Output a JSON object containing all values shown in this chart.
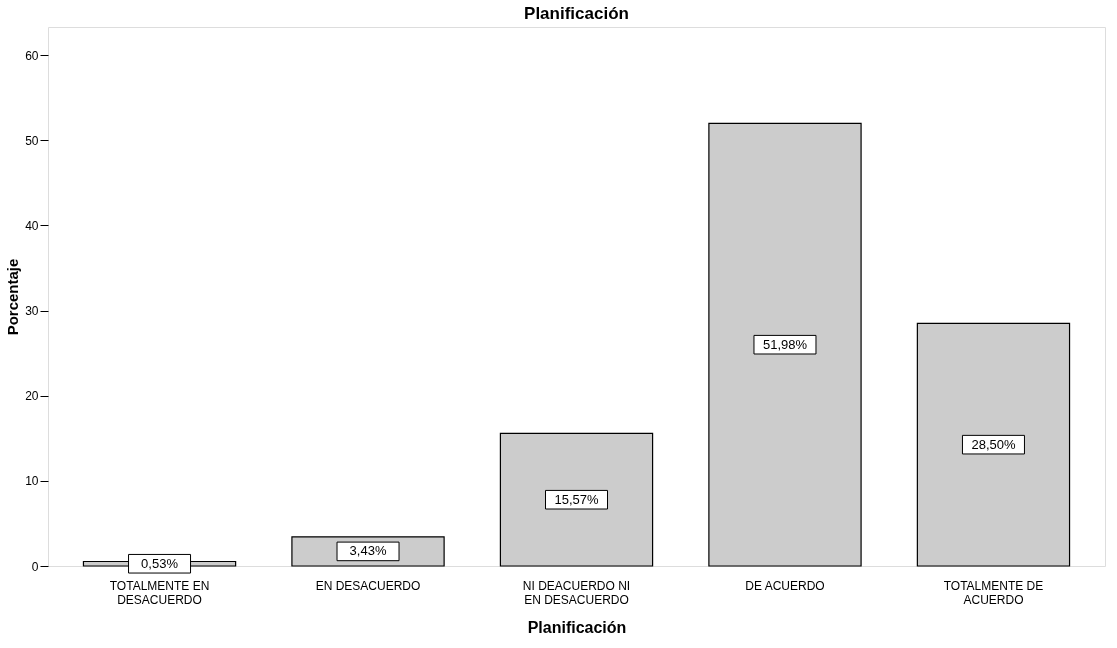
{
  "chart_data": {
    "type": "bar",
    "title": "Planificación",
    "xlabel": "Planificación",
    "ylabel": "Porcentaje",
    "categories": [
      "TOTALMENTE EN\nDESACUERDO",
      "EN DESACUERDO",
      "NI DEACUERDO NI\nEN DESACUERDO",
      "DE ACUERDO",
      "TOTALMENTE DE\nACUERDO"
    ],
    "values": [
      0.53,
      3.43,
      15.57,
      51.98,
      28.5
    ],
    "value_labels": [
      "0,53%",
      "3,43%",
      "15,57%",
      "51,98%",
      "28,50%"
    ],
    "color": "#cccccc",
    "ylim": [
      0,
      63.3
    ],
    "yticks": [
      0,
      10,
      20,
      30,
      40,
      50,
      60
    ],
    "grid": false
  }
}
